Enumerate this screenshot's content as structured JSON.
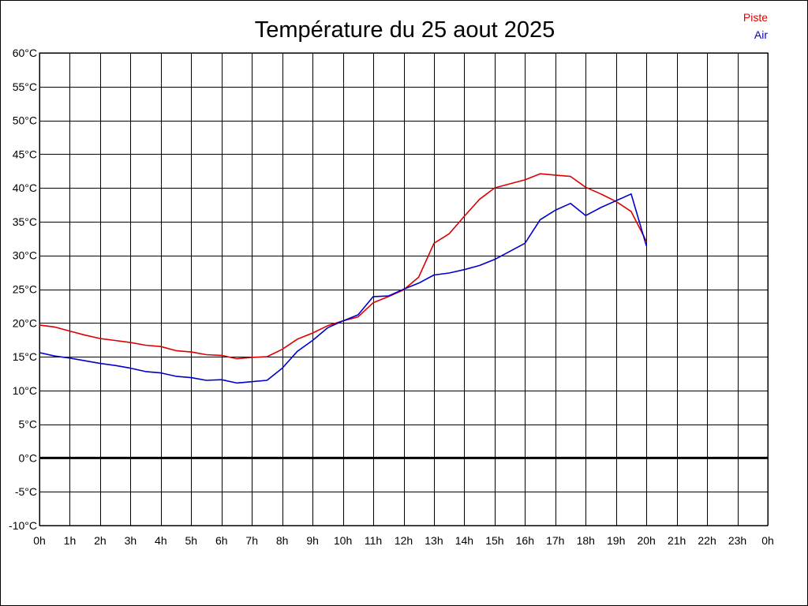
{
  "chart_data": {
    "type": "line",
    "title": "Température du 25 aout 2025",
    "x_tick_labels": [
      "0h",
      "1h",
      "2h",
      "3h",
      "4h",
      "5h",
      "6h",
      "7h",
      "8h",
      "9h",
      "10h",
      "11h",
      "12h",
      "13h",
      "14h",
      "15h",
      "16h",
      "17h",
      "18h",
      "19h",
      "20h",
      "21h",
      "22h",
      "23h",
      "0h"
    ],
    "y_tick_labels": [
      "60°C",
      "55°C",
      "50°C",
      "45°C",
      "40°C",
      "35°C",
      "30°C",
      "25°C",
      "20°C",
      "15°C",
      "10°C",
      "5°C",
      "0°C",
      "-5°C",
      "-10°C"
    ],
    "xlim": [
      0,
      24
    ],
    "ylim": [
      -10,
      60
    ],
    "grid": true,
    "legend_position": "top-right",
    "zero_line": true,
    "series": [
      {
        "name": "Piste",
        "color": "#dd0000",
        "points": [
          [
            0,
            19.7
          ],
          [
            0.5,
            19.4
          ],
          [
            1,
            18.8
          ],
          [
            1.5,
            18.2
          ],
          [
            2,
            17.7
          ],
          [
            2.5,
            17.4
          ],
          [
            3,
            17.1
          ],
          [
            3.5,
            16.7
          ],
          [
            4,
            16.5
          ],
          [
            4.5,
            15.9
          ],
          [
            5,
            15.7
          ],
          [
            5.5,
            15.3
          ],
          [
            6,
            15.2
          ],
          [
            6.5,
            14.7
          ],
          [
            7,
            14.9
          ],
          [
            7.5,
            15.0
          ],
          [
            8,
            16.1
          ],
          [
            8.5,
            17.6
          ],
          [
            9,
            18.5
          ],
          [
            9.5,
            19.6
          ],
          [
            10,
            20.3
          ],
          [
            10.5,
            20.9
          ],
          [
            11,
            23.0
          ],
          [
            11.5,
            23.9
          ],
          [
            12,
            24.9
          ],
          [
            12.5,
            26.8
          ],
          [
            13,
            31.8
          ],
          [
            13.5,
            33.2
          ],
          [
            14,
            35.8
          ],
          [
            14.5,
            38.3
          ],
          [
            15,
            40.0
          ],
          [
            15.5,
            40.6
          ],
          [
            16,
            41.2
          ],
          [
            16.5,
            42.1
          ],
          [
            17,
            41.9
          ],
          [
            17.5,
            41.7
          ],
          [
            18,
            40.1
          ],
          [
            18.5,
            39.1
          ],
          [
            19,
            38.0
          ],
          [
            19.5,
            36.5
          ],
          [
            20,
            32.1
          ]
        ]
      },
      {
        "name": "Air",
        "color": "#0000cc",
        "points": [
          [
            0,
            15.6
          ],
          [
            0.5,
            15.1
          ],
          [
            1,
            14.8
          ],
          [
            1.5,
            14.4
          ],
          [
            2,
            14.0
          ],
          [
            2.5,
            13.7
          ],
          [
            3,
            13.3
          ],
          [
            3.5,
            12.8
          ],
          [
            4,
            12.6
          ],
          [
            4.5,
            12.1
          ],
          [
            5,
            11.9
          ],
          [
            5.5,
            11.5
          ],
          [
            6,
            11.6
          ],
          [
            6.5,
            11.1
          ],
          [
            7,
            11.3
          ],
          [
            7.5,
            11.5
          ],
          [
            8,
            13.3
          ],
          [
            8.5,
            15.8
          ],
          [
            9,
            17.4
          ],
          [
            9.5,
            19.3
          ],
          [
            10,
            20.3
          ],
          [
            10.5,
            21.2
          ],
          [
            11,
            23.9
          ],
          [
            11.5,
            24.0
          ],
          [
            12,
            25.0
          ],
          [
            12.5,
            25.9
          ],
          [
            13,
            27.1
          ],
          [
            13.5,
            27.4
          ],
          [
            14,
            27.9
          ],
          [
            14.5,
            28.5
          ],
          [
            15,
            29.4
          ],
          [
            15.5,
            30.6
          ],
          [
            16,
            31.8
          ],
          [
            16.5,
            35.3
          ],
          [
            17,
            36.7
          ],
          [
            17.5,
            37.7
          ],
          [
            18,
            35.9
          ],
          [
            18.5,
            37.1
          ],
          [
            19,
            38.1
          ],
          [
            19.5,
            39.1
          ],
          [
            20,
            31.4
          ]
        ]
      }
    ]
  }
}
